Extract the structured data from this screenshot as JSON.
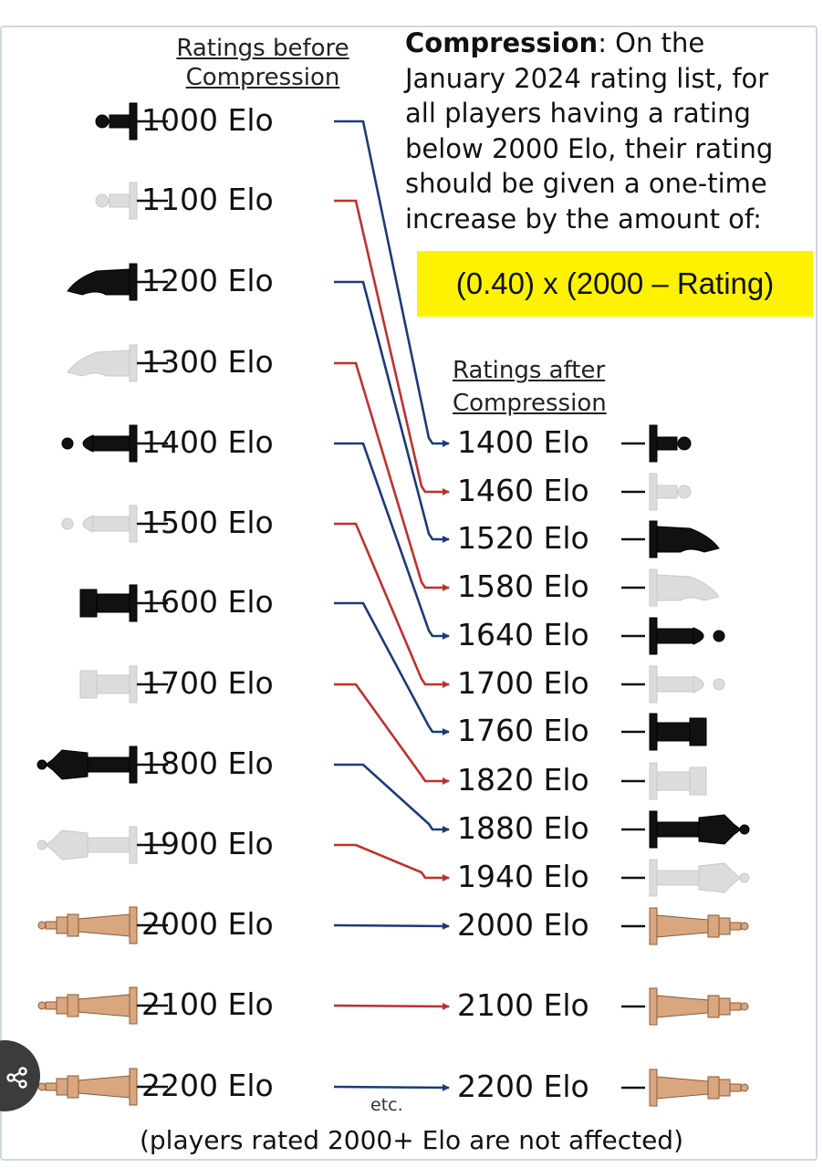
{
  "header_before": [
    "Ratings before",
    "Compression"
  ],
  "header_after": [
    "Ratings after",
    "Compression"
  ],
  "description": {
    "bold": "Compression",
    "lines": [
      ": On the",
      "January 2024 rating list, for",
      "all players having a rating",
      "below 2000 Elo, their rating",
      "should be given a one-time",
      "increase by the amount of:"
    ]
  },
  "formula": "(0.40) x (2000 – Rating)",
  "before": [
    "1000 Elo",
    "1100 Elo",
    "1200 Elo",
    "1300 Elo",
    "1400 Elo",
    "1500 Elo",
    "1600 Elo",
    "1700 Elo",
    "1800 Elo",
    "1900 Elo",
    "2000 Elo",
    "2100 Elo",
    "2200 Elo"
  ],
  "after": [
    "1400 Elo",
    "1460 Elo",
    "1520 Elo",
    "1580 Elo",
    "1640 Elo",
    "1700 Elo",
    "1760 Elo",
    "1820 Elo",
    "1880 Elo",
    "1940 Elo",
    "2000 Elo",
    "2100 Elo",
    "2200 Elo"
  ],
  "pieces": [
    "pawn",
    "pawn",
    "knight",
    "knight",
    "bishop",
    "bishop",
    "rook",
    "rook",
    "queen",
    "queen",
    "king",
    "king",
    "king"
  ],
  "piece_tones": [
    "black",
    "white",
    "black",
    "white",
    "black",
    "white",
    "black",
    "white",
    "black",
    "white",
    "wood",
    "wood",
    "wood"
  ],
  "arrow_colors": [
    "#1b3a7a",
    "#c0302c",
    "#1b3a7a",
    "#c0302c",
    "#1b3a7a",
    "#c0302c",
    "#1b3a7a",
    "#c0302c",
    "#1b3a7a",
    "#c0302c",
    "#1b3a7a",
    "#c0302c",
    "#1b3a7a"
  ],
  "etc": "etc.",
  "footer": "(players rated 2000+ Elo are not affected)"
}
